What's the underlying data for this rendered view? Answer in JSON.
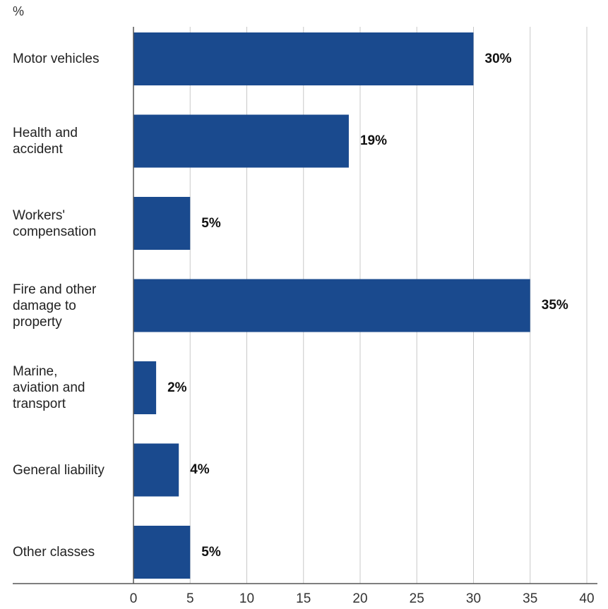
{
  "chart_data": {
    "type": "bar",
    "orientation": "horizontal",
    "unit_label": "%",
    "categories": [
      "Motor vehicles",
      "Health and accident",
      "Workers' compensation",
      "Fire and other damage to property",
      "Marine, aviation and transport",
      "General liability",
      "Other classes"
    ],
    "category_lines": [
      [
        "Motor vehicles"
      ],
      [
        "Health and",
        "accident"
      ],
      [
        "Workers'",
        "compensation"
      ],
      [
        "Fire and other",
        "damage to",
        "property"
      ],
      [
        "Marine,",
        "aviation and",
        "transport"
      ],
      [
        "General liability"
      ],
      [
        "Other classes"
      ]
    ],
    "values": [
      30,
      19,
      5,
      35,
      2,
      4,
      5
    ],
    "value_labels": [
      "30%",
      "19%",
      "5%",
      "35%",
      "2%",
      "4%",
      "5%"
    ],
    "xlim": [
      0,
      40
    ],
    "xticks": [
      0,
      5,
      10,
      15,
      20,
      25,
      30,
      35,
      40
    ],
    "xtick_labels": [
      "0",
      "5",
      "10",
      "15",
      "20",
      "25",
      "30",
      "35",
      "40"
    ],
    "grid": "vertical",
    "colors": {
      "bar": "#1a4a8e",
      "grid": "#c8c8c8",
      "axis": "#555555"
    }
  }
}
